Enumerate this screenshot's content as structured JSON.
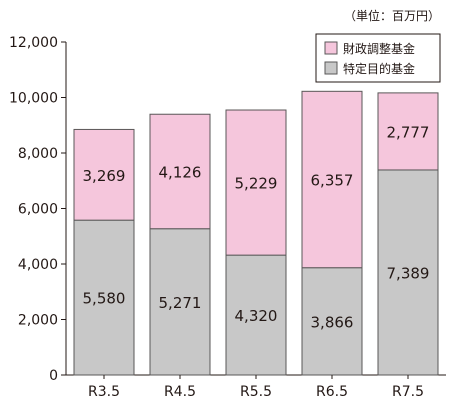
{
  "chart_data": {
    "type": "bar",
    "stacked": true,
    "unit": "（単位：百万円）",
    "categories": [
      "R3.5",
      "R4.5",
      "R5.5",
      "R6.5",
      "R7.5"
    ],
    "series": [
      {
        "name": "特定目的基金",
        "color": "#c8c8c8",
        "values": [
          5580,
          5271,
          4320,
          3866,
          7389
        ],
        "labels": [
          "5,580",
          "5,271",
          "4,320",
          "3,866",
          "7,389"
        ]
      },
      {
        "name": "財政調整基金",
        "color": "#f5c6dc",
        "values": [
          3269,
          4126,
          5229,
          6357,
          2777
        ],
        "labels": [
          "3,269",
          "4,126",
          "5,229",
          "6,357",
          "2,777"
        ]
      }
    ],
    "legend_order": [
      1,
      0
    ],
    "legend_position": "top-right",
    "ylim": [
      0,
      12000
    ],
    "yticks": [
      0,
      2000,
      4000,
      6000,
      8000,
      10000,
      12000
    ],
    "ytick_labels": [
      "0",
      "2,000",
      "4,000",
      "6,000",
      "8,000",
      "10,000",
      "12,000"
    ],
    "grid": false
  }
}
